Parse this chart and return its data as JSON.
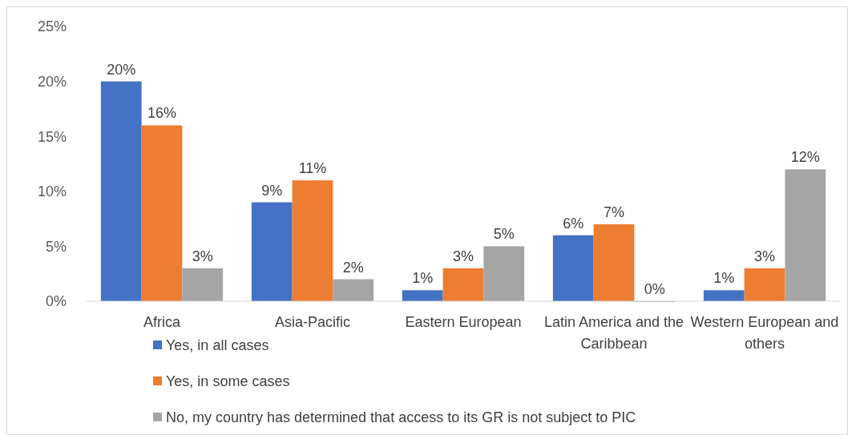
{
  "chart_data": {
    "type": "bar",
    "categories": [
      "Africa",
      "Asia-Pacific",
      "Eastern European",
      "Latin America and the Caribbean",
      "Western European and others"
    ],
    "series": [
      {
        "name": "Yes, in all cases",
        "color": "#4472c4",
        "values": [
          20,
          9,
          1,
          6,
          1
        ],
        "value_labels": [
          "20%",
          "9%",
          "1%",
          "6%",
          "1%"
        ]
      },
      {
        "name": "Yes, in some cases",
        "color": "#ed7d31",
        "values": [
          16,
          11,
          3,
          7,
          3
        ],
        "value_labels": [
          "16%",
          "11%",
          "3%",
          "7%",
          "3%"
        ]
      },
      {
        "name": "No, my country has determined that access to its GR is not subject to PIC",
        "color": "#a5a5a5",
        "values": [
          3,
          2,
          5,
          0,
          12
        ],
        "value_labels": [
          "3%",
          "2%",
          "5%",
          "0%",
          "12%"
        ]
      }
    ],
    "ylim": [
      0,
      25
    ],
    "yticks": [
      {
        "value": 0,
        "label": "0%"
      },
      {
        "value": 5,
        "label": "5%"
      },
      {
        "value": 10,
        "label": "10%"
      },
      {
        "value": 15,
        "label": "15%"
      },
      {
        "value": 20,
        "label": "20%"
      },
      {
        "value": 25,
        "label": "25%"
      }
    ],
    "grid": false,
    "legend": "bottom"
  }
}
